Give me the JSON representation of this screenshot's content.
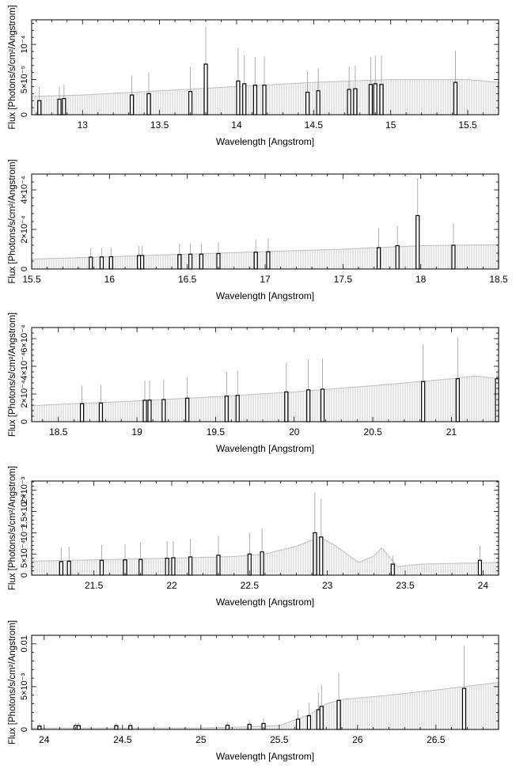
{
  "chart_data": [
    {
      "type": "bar",
      "xlabel": "Wavelength [Angstrom]",
      "ylabel": "Flux [Photons/s/cm²/Angstrom]",
      "xlim": [
        12.67,
        15.7
      ],
      "ylim": [
        0,
        0.000135
      ],
      "xticks": [
        13,
        13.5,
        14,
        14.5,
        15,
        15.5
      ],
      "xtick_labels": [
        "13",
        "13.5",
        "14",
        "14.5",
        "15",
        "15.5"
      ],
      "yticks": [
        0,
        5e-05,
        0.0001
      ],
      "ytick_labels": [
        "0",
        "5×10⁻⁵",
        "10⁻⁴"
      ],
      "continuum": {
        "x": [
          12.67,
          13.0,
          13.5,
          14.0,
          14.5,
          15.0,
          15.5,
          15.7
        ],
        "y": [
          2.6e-05,
          2.8e-05,
          3.4e-05,
          4e-05,
          4.6e-05,
          5e-05,
          5e-05,
          4.6e-05
        ]
      },
      "lines": [
        {
          "x": 12.72,
          "y": 2e-05,
          "err": 2e-05
        },
        {
          "x": 12.85,
          "y": 2.2e-05,
          "err": 1.8e-05
        },
        {
          "x": 12.88,
          "y": 2.3e-05,
          "err": 2e-05
        },
        {
          "x": 13.32,
          "y": 2.8e-05,
          "err": 2.8e-05
        },
        {
          "x": 13.43,
          "y": 3e-05,
          "err": 3e-05
        },
        {
          "x": 13.7,
          "y": 3.3e-05,
          "err": 3.5e-05
        },
        {
          "x": 13.8,
          "y": 7.2e-05,
          "err": 5.3e-05
        },
        {
          "x": 14.01,
          "y": 4.8e-05,
          "err": 4.7e-05
        },
        {
          "x": 14.05,
          "y": 4.4e-05,
          "err": 4e-05
        },
        {
          "x": 14.12,
          "y": 4.2e-05,
          "err": 4e-05
        },
        {
          "x": 14.18,
          "y": 4.2e-05,
          "err": 4.1e-05
        },
        {
          "x": 14.46,
          "y": 3.2e-05,
          "err": 3e-05
        },
        {
          "x": 14.53,
          "y": 3.4e-05,
          "err": 3.2e-05
        },
        {
          "x": 14.73,
          "y": 3.6e-05,
          "err": 3.3e-05
        },
        {
          "x": 14.77,
          "y": 3.7e-05,
          "err": 3.3e-05
        },
        {
          "x": 14.87,
          "y": 4.3e-05,
          "err": 3.9e-05
        },
        {
          "x": 14.9,
          "y": 4.4e-05,
          "err": 4e-05
        },
        {
          "x": 14.94,
          "y": 4.3e-05,
          "err": 4.1e-05
        },
        {
          "x": 15.42,
          "y": 4.6e-05,
          "err": 4.5e-05
        }
      ]
    },
    {
      "type": "bar",
      "xlabel": "Wavelength [Angstrom]",
      "ylabel": "Flux [Photons/s/cm²/Angstrom]",
      "xlim": [
        15.5,
        18.5
      ],
      "ylim": [
        0,
        0.00048
      ],
      "xticks": [
        15.5,
        16,
        16.5,
        17,
        17.5,
        18,
        18.5
      ],
      "xtick_labels": [
        "15.5",
        "16",
        "16.5",
        "17",
        "17.5",
        "18",
        "18.5"
      ],
      "yticks": [
        0,
        0.0002,
        0.0004
      ],
      "ytick_labels": [
        "0",
        "2×10⁻⁴",
        "4×10⁻⁴"
      ],
      "continuum": {
        "x": [
          15.5,
          16.0,
          16.5,
          17.0,
          17.5,
          18.0,
          18.5
        ],
        "y": [
          5e-05,
          6.2e-05,
          7.5e-05,
          8.8e-05,
          0.0001,
          0.000118,
          0.000122
        ]
      },
      "lines": [
        {
          "x": 15.88,
          "y": 6e-05,
          "err": 4.5e-05
        },
        {
          "x": 15.95,
          "y": 6.1e-05,
          "err": 4.5e-05
        },
        {
          "x": 16.01,
          "y": 6.2e-05,
          "err": 4.5e-05
        },
        {
          "x": 16.19,
          "y": 6.8e-05,
          "err": 4.8e-05
        },
        {
          "x": 16.21,
          "y": 6.8e-05,
          "err": 4.8e-05
        },
        {
          "x": 16.45,
          "y": 7.3e-05,
          "err": 5.5e-05
        },
        {
          "x": 16.52,
          "y": 7.5e-05,
          "err": 5.5e-05
        },
        {
          "x": 16.59,
          "y": 7.5e-05,
          "err": 5.5e-05
        },
        {
          "x": 16.7,
          "y": 7.8e-05,
          "err": 5.5e-05
        },
        {
          "x": 16.94,
          "y": 8.5e-05,
          "err": 6.5e-05
        },
        {
          "x": 17.02,
          "y": 8.7e-05,
          "err": 7e-05
        },
        {
          "x": 17.73,
          "y": 0.000108,
          "err": 0.0001
        },
        {
          "x": 17.85,
          "y": 0.000118,
          "err": 0.0001
        },
        {
          "x": 17.98,
          "y": 0.00027,
          "err": 0.00019
        },
        {
          "x": 18.21,
          "y": 0.00012,
          "err": 0.00011
        }
      ]
    },
    {
      "type": "bar",
      "xlabel": "Wavelength [Angstrom]",
      "ylabel": "Flux [Photons/s/cm²/Angstrom]",
      "xlim": [
        18.33,
        21.3
      ],
      "ylim": [
        0,
        0.00068
      ],
      "xticks": [
        18.5,
        19,
        19.5,
        20,
        20.5,
        21
      ],
      "xtick_labels": [
        "18.5",
        "19",
        "19.5",
        "20",
        "20.5",
        "21"
      ],
      "yticks": [
        0,
        0.0002,
        0.0004,
        0.0006
      ],
      "ytick_labels": [
        "0",
        "2×10⁻⁴",
        "4×10⁻⁴",
        "6×10⁻⁴"
      ],
      "continuum": {
        "x": [
          18.33,
          18.5,
          19.0,
          19.5,
          20.0,
          20.5,
          21.0,
          21.15,
          21.3
        ],
        "y": [
          0.000115,
          0.000125,
          0.00015,
          0.00018,
          0.000215,
          0.00026,
          0.00031,
          0.00033,
          0.00031
        ]
      },
      "lines": [
        {
          "x": 18.65,
          "y": 0.00013,
          "err": 0.00013
        },
        {
          "x": 18.77,
          "y": 0.000135,
          "err": 0.00013
        },
        {
          "x": 19.05,
          "y": 0.000155,
          "err": 0.00014
        },
        {
          "x": 19.08,
          "y": 0.000156,
          "err": 0.00014
        },
        {
          "x": 19.17,
          "y": 0.00016,
          "err": 0.000145
        },
        {
          "x": 19.32,
          "y": 0.00017,
          "err": 0.00015
        },
        {
          "x": 19.57,
          "y": 0.000185,
          "err": 0.000175
        },
        {
          "x": 19.64,
          "y": 0.00019,
          "err": 0.000175
        },
        {
          "x": 19.95,
          "y": 0.000215,
          "err": 0.00021
        },
        {
          "x": 20.09,
          "y": 0.00023,
          "err": 0.00022
        },
        {
          "x": 20.18,
          "y": 0.000235,
          "err": 0.00022
        },
        {
          "x": 20.82,
          "y": 0.00029,
          "err": 0.00027
        },
        {
          "x": 21.04,
          "y": 0.00031,
          "err": 0.0003
        },
        {
          "x": 21.29,
          "y": 0.00031,
          "err": 5e-05
        }
      ]
    },
    {
      "type": "bar",
      "xlabel": "Wavelength [Angstrom]",
      "ylabel": "Flux [Photons/s/cm²/Angstrom]",
      "xlim": [
        21.1,
        24.1
      ],
      "ylim": [
        0,
        0.00222
      ],
      "xticks": [
        21.5,
        22,
        22.5,
        23,
        23.5,
        24
      ],
      "xtick_labels": [
        "21.5",
        "22",
        "22.5",
        "23",
        "23.5",
        "24"
      ],
      "yticks": [
        0,
        0.0005,
        0.001,
        0.0015,
        0.002
      ],
      "ytick_labels": [
        "0",
        "5×10⁻⁴",
        "10⁻³",
        "1.5×10⁻³",
        "2×10⁻³"
      ],
      "continuum": {
        "x": [
          21.1,
          21.5,
          22.0,
          22.4,
          22.6,
          22.8,
          22.95,
          23.05,
          23.2,
          23.3,
          23.35,
          23.45,
          23.6,
          24.1
        ],
        "y": [
          0.00033,
          0.00036,
          0.0004,
          0.00044,
          0.0005,
          0.00068,
          0.0009,
          0.0007,
          0.0003,
          0.00045,
          0.00065,
          0.0002,
          0.00026,
          0.0003
        ]
      },
      "lines": [
        {
          "x": 21.29,
          "y": 0.00032,
          "err": 0.00034
        },
        {
          "x": 21.34,
          "y": 0.00033,
          "err": 0.00034
        },
        {
          "x": 21.55,
          "y": 0.00035,
          "err": 0.00036
        },
        {
          "x": 21.7,
          "y": 0.00036,
          "err": 0.00037
        },
        {
          "x": 21.8,
          "y": 0.00037,
          "err": 0.0004
        },
        {
          "x": 21.97,
          "y": 0.0004,
          "err": 0.0004
        },
        {
          "x": 22.01,
          "y": 0.00041,
          "err": 0.0004
        },
        {
          "x": 22.12,
          "y": 0.00043,
          "err": 0.00042
        },
        {
          "x": 22.3,
          "y": 0.00047,
          "err": 0.00045
        },
        {
          "x": 22.5,
          "y": 0.0005,
          "err": 0.0005
        },
        {
          "x": 22.58,
          "y": 0.00055,
          "err": 0.00055
        },
        {
          "x": 22.92,
          "y": 0.001,
          "err": 0.00095
        },
        {
          "x": 22.96,
          "y": 0.0009,
          "err": 0.0009
        },
        {
          "x": 23.42,
          "y": 0.00026,
          "err": 0.0002
        },
        {
          "x": 23.98,
          "y": 0.00035,
          "err": 0.00035
        }
      ]
    },
    {
      "type": "bar",
      "xlabel": "Wavelength [Angstrom]",
      "ylabel": "Flux [Photons/s/cm²/Angstrom]",
      "xlim": [
        23.92,
        26.9
      ],
      "ylim": [
        0,
        0.011
      ],
      "xticks": [
        24,
        24.5,
        25,
        25.5,
        26,
        26.5
      ],
      "xtick_labels": [
        "24",
        "24.5",
        "25",
        "25.5",
        "26",
        "26.5"
      ],
      "yticks": [
        0,
        0.005,
        0.01
      ],
      "ytick_labels": [
        "0",
        "5×10⁻³",
        "0.01"
      ],
      "continuum": {
        "x": [
          23.92,
          25.0,
          25.3,
          25.5,
          25.6,
          25.7,
          25.8,
          25.9,
          26.2,
          26.5,
          26.9
        ],
        "y": [
          0.00015,
          0.00018,
          0.0003,
          0.00045,
          0.0011,
          0.0018,
          0.003,
          0.0035,
          0.004,
          0.0046,
          0.0055
        ]
      },
      "lines": [
        {
          "x": 23.97,
          "y": 0.0004,
          "err": 0.0003
        },
        {
          "x": 24.2,
          "y": 0.00045,
          "err": 0.0003
        },
        {
          "x": 24.22,
          "y": 0.00045,
          "err": 0.0003
        },
        {
          "x": 24.46,
          "y": 0.00045,
          "err": 0.0003
        },
        {
          "x": 24.55,
          "y": 0.00045,
          "err": 0.0003
        },
        {
          "x": 25.17,
          "y": 0.0005,
          "err": 0.0004
        },
        {
          "x": 25.31,
          "y": 0.0006,
          "err": 0.0005
        },
        {
          "x": 25.4,
          "y": 0.0007,
          "err": 0.0006
        },
        {
          "x": 25.62,
          "y": 0.0012,
          "err": 0.0011
        },
        {
          "x": 25.69,
          "y": 0.0016,
          "err": 0.0015
        },
        {
          "x": 25.75,
          "y": 0.0023,
          "err": 0.002
        },
        {
          "x": 25.77,
          "y": 0.0027,
          "err": 0.0025
        },
        {
          "x": 25.88,
          "y": 0.0034,
          "err": 0.0032
        },
        {
          "x": 26.68,
          "y": 0.0048,
          "err": 0.005
        }
      ]
    }
  ]
}
